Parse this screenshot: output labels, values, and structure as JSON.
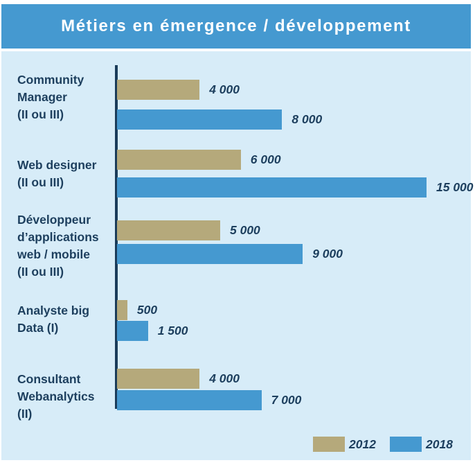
{
  "chart_data": {
    "type": "bar",
    "orientation": "horizontal",
    "title": "Métiers en émergence / développement",
    "categories": [
      "Community\nManager\n(II ou III)",
      "Web designer\n(II ou III)",
      "Développeur\nd’applications\nweb / mobile\n(II ou III)",
      "Analyste big\nData  (I)",
      "Consultant\nWebanalytics\n(II)"
    ],
    "series": [
      {
        "name": "2012",
        "color": "#b5a97b",
        "values": [
          4000,
          6000,
          5000,
          500,
          4000
        ],
        "labels": [
          "4 000",
          "6 000",
          "5 000",
          "500",
          "4 000"
        ]
      },
      {
        "name": "2018",
        "color": "#4599d0",
        "values": [
          8000,
          15000,
          9000,
          1500,
          7000
        ],
        "labels": [
          "8 000",
          "15 000",
          "9 000",
          "1 500",
          "7 000"
        ]
      }
    ],
    "xlim": [
      0,
      15000
    ],
    "grid": false,
    "legend_position": "bottom-right"
  }
}
